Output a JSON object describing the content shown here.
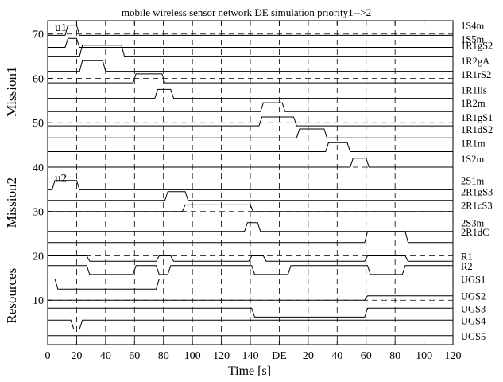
{
  "chart_data": {
    "type": "line",
    "title": "mobile wireless sensor network DE simulation priority1-->2",
    "xlabel": "Time [s]",
    "xlim": [
      0,
      120
    ],
    "ylim": [
      0,
      73
    ],
    "grid": false,
    "x_tick_labels": [
      "0",
      "20",
      "40",
      "60",
      "80",
      "100",
      "120",
      "140",
      "DE",
      "20",
      "40",
      "60",
      "80",
      "100",
      "120"
    ],
    "y_tick_labels": [
      "10",
      "20",
      "30",
      "40",
      "50",
      "60",
      "70"
    ],
    "y_tick_values": [
      10,
      20,
      30,
      40,
      50,
      60,
      70
    ],
    "vertical_dashed_x": [
      20,
      40,
      60,
      80,
      100,
      120,
      140,
      160,
      180,
      200,
      220,
      240,
      260,
      280
    ],
    "horizontal_dashed_y": [
      10,
      20,
      30,
      40,
      50,
      60,
      70
    ],
    "group_labels": [
      {
        "text": "Mission1",
        "y_center": 57
      },
      {
        "text": "Mission2",
        "y_center": 32
      },
      {
        "text": "Resources",
        "y_center": 11
      }
    ],
    "markers": [
      {
        "text": "u1",
        "x": 5,
        "y": 71
      },
      {
        "text": "u2",
        "x": 5,
        "y": 37
      }
    ],
    "series": [
      {
        "name": "1S4m",
        "base": 69.7,
        "high": 72,
        "pulses": [
          [
            14,
            20
          ]
        ]
      },
      {
        "name": "1S5m",
        "base": 67,
        "high": 69,
        "pulses": [
          [
            14,
            20
          ]
        ]
      },
      {
        "name": "1R1gS2",
        "base": 65,
        "high": 67.5,
        "pulses": [
          [
            24,
            51
          ]
        ]
      },
      {
        "name": "1R2gA",
        "base": 61.6,
        "high": 64,
        "pulses": [
          [
            24,
            38
          ]
        ]
      },
      {
        "name": "1R1rS2",
        "base": 59,
        "high": 61,
        "pulses": [
          [
            61,
            79
          ]
        ]
      },
      {
        "name": "1R1lis",
        "base": 55.5,
        "high": 57.5,
        "pulses": [
          [
            76,
            85
          ]
        ]
      },
      {
        "name": "1R2m",
        "base": 52.5,
        "high": 54.5,
        "pulses": [
          [
            149,
            162
          ]
        ]
      },
      {
        "name": "1R1gS1",
        "base": 49.3,
        "high": 51.3,
        "pulses": [
          [
            148,
            170
          ]
        ]
      },
      {
        "name": "1R1dS2",
        "base": 46.6,
        "high": 48.6,
        "pulses": [
          [
            174,
            191
          ]
        ]
      },
      {
        "name": "1R1m",
        "base": 43.5,
        "high": 45.5,
        "pulses": [
          [
            194,
            207
          ]
        ]
      },
      {
        "name": "1S2m",
        "base": 40,
        "high": 42,
        "pulses": [
          [
            211,
            220
          ]
        ]
      },
      {
        "name": "2S1m",
        "base": 34.9,
        "high": 37,
        "pulses": [
          [
            5,
            20
          ]
        ]
      },
      {
        "name": "2R1gS3",
        "base": 32.5,
        "high": 34.5,
        "pulses": [
          [
            83,
            95
          ]
        ]
      },
      {
        "name": "2R1cS3",
        "base": 30,
        "high": 31.5,
        "pulses": [
          [
            95,
            140
          ]
        ]
      },
      {
        "name": "2S3m",
        "base": 25.5,
        "high": 27.5,
        "pulses": [
          [
            138,
            145
          ]
        ]
      },
      {
        "name": "2R1dC",
        "base": 23,
        "high": 25.5,
        "pulses": [
          [
            221,
            247
          ]
        ]
      },
      {
        "name": "R1",
        "base": 18.8,
        "high": 20,
        "pulses": [
          [
            0,
            27
          ],
          [
            77,
            85
          ],
          [
            141,
            149
          ],
          [
            221,
            247
          ]
        ]
      },
      {
        "name": "R2",
        "base": 15.8,
        "high": 17.8,
        "pulses": [
          [
            0,
            27
          ],
          [
            61,
            75
          ],
          [
            85,
            141
          ],
          [
            168,
            221
          ],
          [
            247,
            280
          ]
        ]
      },
      {
        "name": "UGS1",
        "base": 12.5,
        "high": 14.8,
        "pulses": [
          [
            0,
            5
          ],
          [
            77,
            280
          ]
        ]
      },
      {
        "name": "UGS2",
        "base": 10,
        "high": 11,
        "pulses": [
          [
            221,
            280
          ]
        ]
      },
      {
        "name": "UGS3",
        "base": 6.2,
        "high": 8.2,
        "pulses": [
          [
            0,
            141
          ],
          [
            221,
            280
          ]
        ]
      },
      {
        "name": "UGS4",
        "base": 3.5,
        "high": 5.5,
        "pulses": [
          [
            0,
            16
          ],
          [
            24,
            280
          ]
        ]
      },
      {
        "name": "UGS5",
        "base": 1.2,
        "high": 2,
        "pulses": [
          [
            0,
            280
          ]
        ]
      }
    ]
  }
}
